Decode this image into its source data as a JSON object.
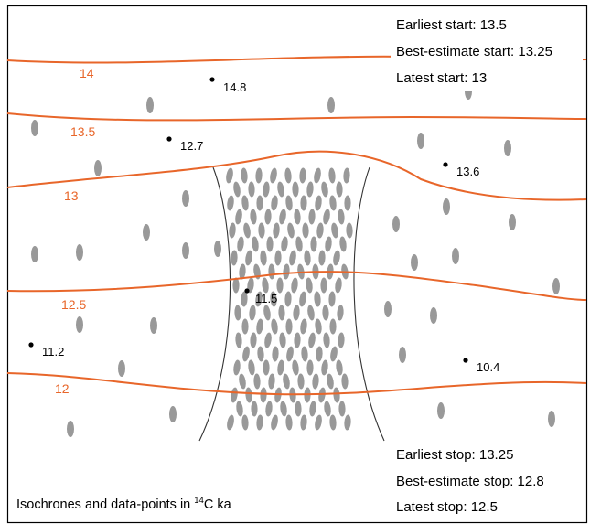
{
  "start_info": {
    "earliest": "Earliest start: 13.5",
    "best": "Best-estimate start: 13.25",
    "latest": "Latest start: 13"
  },
  "stop_info": {
    "earliest": "Earliest stop: 13.25",
    "best": "Best-estimate stop: 12.8",
    "latest": "Latest stop: 12.5"
  },
  "caption": {
    "prefix": "Isochrones and data-points in ",
    "superscript": "14",
    "suffix": "C ka"
  },
  "isochrones": [
    {
      "label": "14"
    },
    {
      "label": "13.5"
    },
    {
      "label": "13"
    },
    {
      "label": "12.5"
    },
    {
      "label": "12"
    }
  ],
  "data_points": [
    {
      "label": "14.8"
    },
    {
      "label": "12.7"
    },
    {
      "label": "13.6"
    },
    {
      "label": "11.5"
    },
    {
      "label": "11.2"
    },
    {
      "label": "10.4"
    }
  ],
  "colors": {
    "isochrone": "#e8662a",
    "clast": "#999999",
    "frame": "#000000",
    "channel": "#333333"
  }
}
